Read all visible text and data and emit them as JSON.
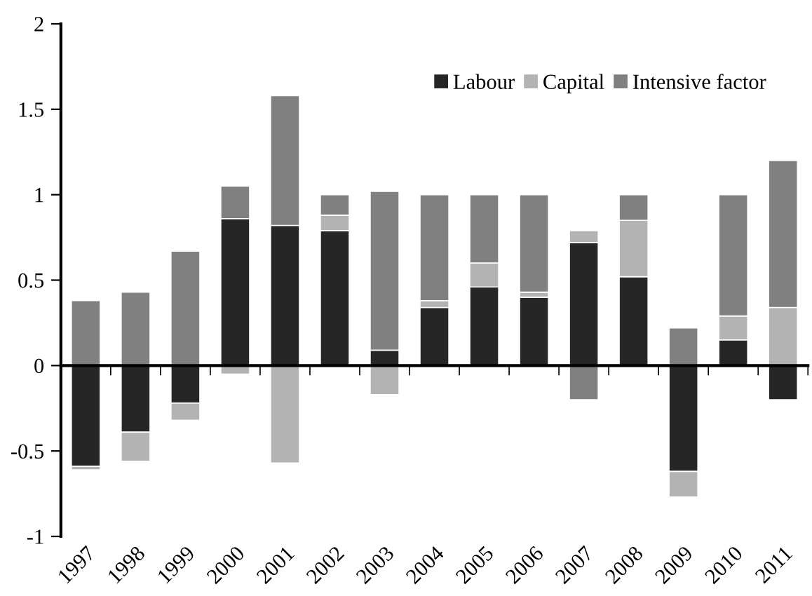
{
  "chart_data": {
    "type": "bar",
    "stacked": true,
    "categories": [
      "1997",
      "1998",
      "1999",
      "2000",
      "2001",
      "2002",
      "2003",
      "2004",
      "2005",
      "2006",
      "2007",
      "2008",
      "2009",
      "2010",
      "2011"
    ],
    "series": [
      {
        "name": "Labour",
        "color": "#262626",
        "values": [
          -0.59,
          -0.39,
          -0.22,
          0.86,
          0.82,
          0.79,
          0.09,
          0.34,
          0.46,
          0.4,
          0.72,
          0.52,
          -0.62,
          0.15,
          -0.2
        ]
      },
      {
        "name": "Capital",
        "color": "#b3b3b3",
        "values": [
          -0.02,
          -0.17,
          -0.1,
          -0.05,
          -0.57,
          0.09,
          -0.17,
          0.04,
          0.14,
          0.03,
          0.07,
          0.33,
          -0.15,
          0.14,
          0.34
        ]
      },
      {
        "name": "Intensive factor",
        "color": "#808080",
        "values": [
          0.38,
          0.43,
          0.67,
          0.19,
          0.76,
          0.12,
          0.93,
          0.62,
          0.4,
          0.57,
          -0.2,
          0.15,
          0.22,
          0.71,
          0.86
        ]
      }
    ],
    "ylim": [
      -1,
      2
    ],
    "yticks": [
      -1,
      -0.5,
      0,
      0.5,
      1,
      1.5,
      2
    ],
    "legend": "top right"
  }
}
